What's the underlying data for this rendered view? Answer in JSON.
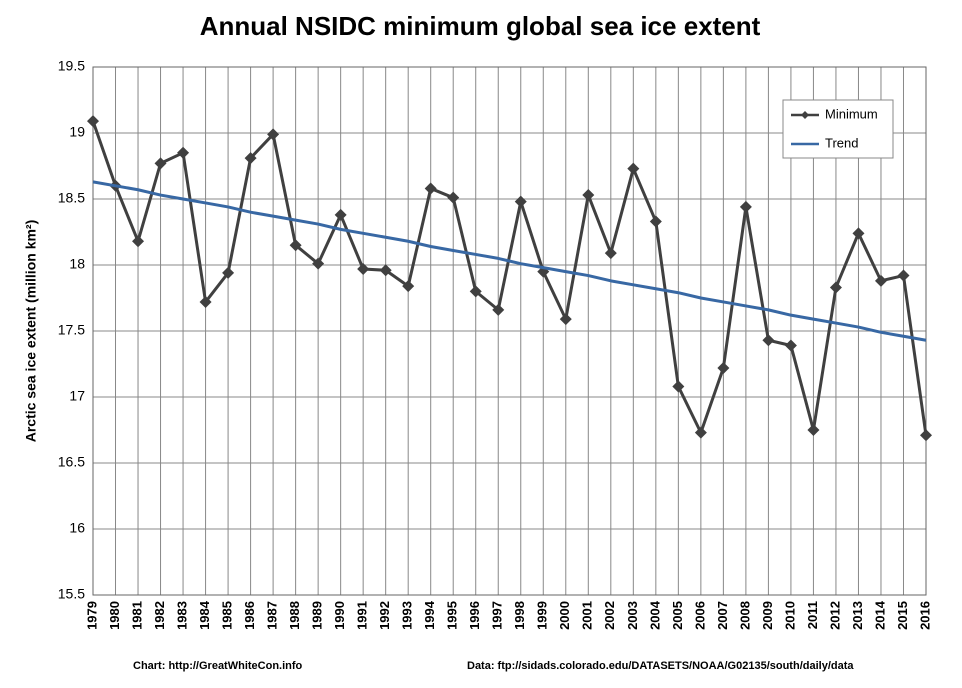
{
  "chart_data": {
    "type": "line",
    "title": "Annual NSIDC minimum global sea ice extent",
    "y_label": "Arctic sea ice extent (million km²)",
    "source_chart": "Chart: http://GreatWhiteCon.info",
    "source_data": "Data: ftp://sidads.colorado.edu/DATASETS/NOAA/G02135/south/daily/data",
    "categories": [
      "1979",
      "1980",
      "1981",
      "1982",
      "1983",
      "1984",
      "1985",
      "1986",
      "1987",
      "1988",
      "1989",
      "1990",
      "1991",
      "1992",
      "1993",
      "1994",
      "1995",
      "1996",
      "1997",
      "1998",
      "1999",
      "2000",
      "2001",
      "2002",
      "2003",
      "2004",
      "2005",
      "2006",
      "2007",
      "2008",
      "2009",
      "2010",
      "2011",
      "2012",
      "2013",
      "2014",
      "2015",
      "2016"
    ],
    "series": [
      {
        "name": "Minimum",
        "color": "#404040",
        "marker": "diamond",
        "values": [
          19.09,
          18.6,
          18.18,
          18.77,
          18.85,
          17.72,
          17.94,
          18.81,
          18.99,
          18.15,
          18.01,
          18.38,
          17.97,
          17.96,
          17.84,
          18.58,
          18.51,
          17.8,
          17.66,
          18.48,
          17.95,
          17.59,
          18.53,
          18.09,
          18.73,
          18.33,
          17.08,
          16.73,
          17.22,
          18.44,
          17.43,
          17.39,
          16.75,
          17.83,
          18.24,
          17.88,
          17.92,
          16.71
        ]
      },
      {
        "name": "Trend",
        "color": "#3868a4",
        "marker": "none",
        "values": [
          18.63,
          18.6,
          18.57,
          18.53,
          18.5,
          18.47,
          18.44,
          18.4,
          18.37,
          18.34,
          18.31,
          18.27,
          18.24,
          18.21,
          18.18,
          18.14,
          18.11,
          18.08,
          18.05,
          18.01,
          17.98,
          17.95,
          17.92,
          17.88,
          17.85,
          17.82,
          17.79,
          17.75,
          17.72,
          17.69,
          17.66,
          17.62,
          17.59,
          17.56,
          17.53,
          17.49,
          17.46,
          17.43
        ]
      }
    ],
    "ylim": [
      15.5,
      19.5
    ],
    "yticks": [
      15.5,
      16,
      16.5,
      17,
      17.5,
      18,
      18.5,
      19,
      19.5
    ],
    "grid": true,
    "legend": "upper right"
  }
}
